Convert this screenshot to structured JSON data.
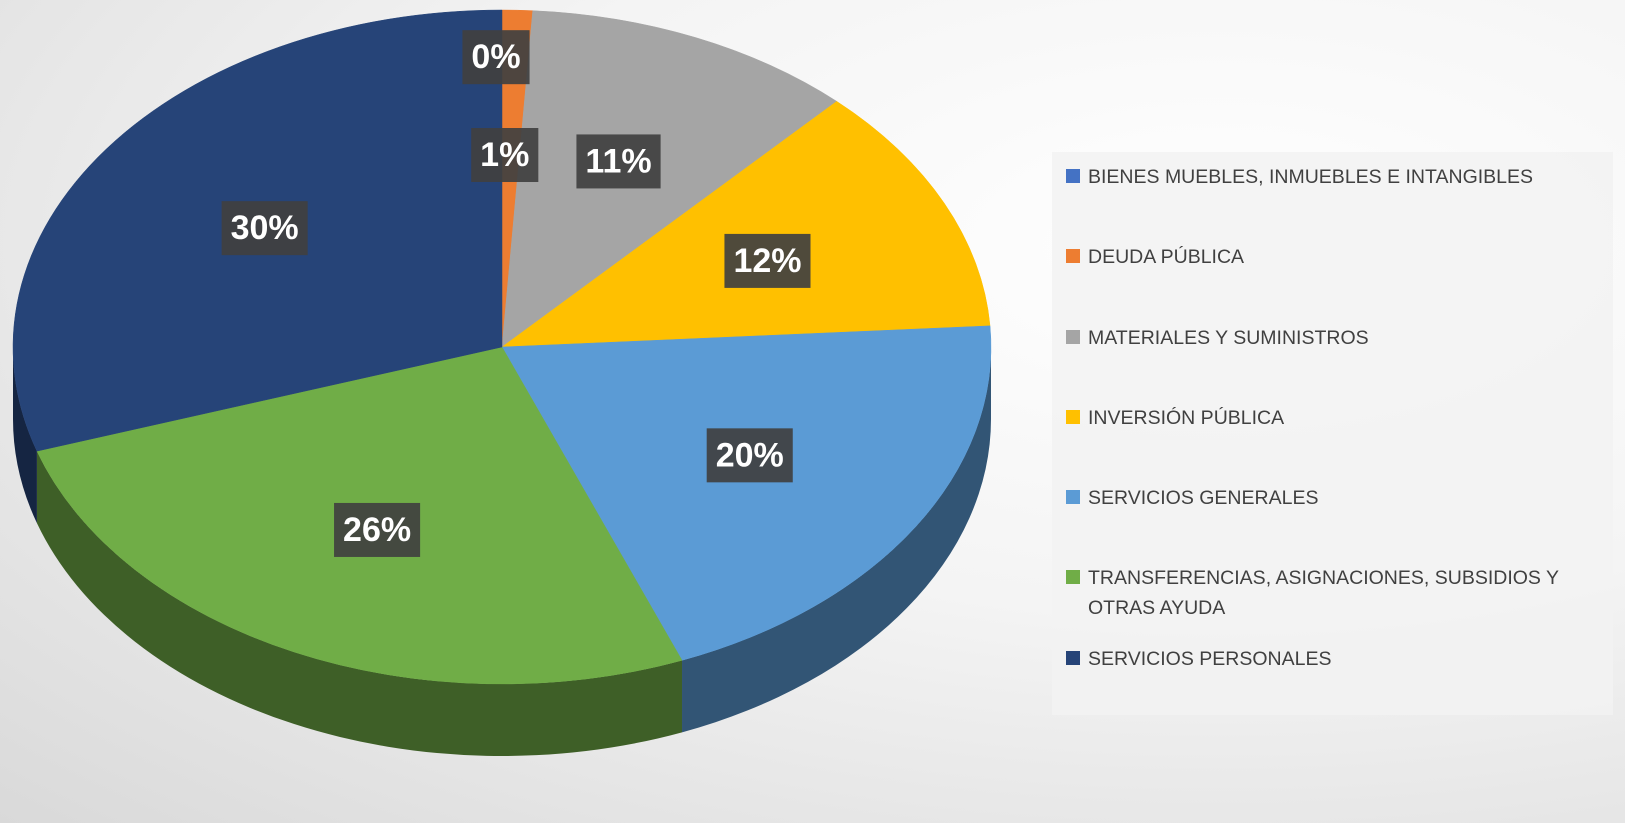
{
  "chart_data": {
    "type": "pie",
    "pie_3d": true,
    "categories": [
      "BIENES MUEBLES, INMUEBLES E INTANGIBLES",
      "DEUDA PÚBLICA",
      "MATERIALES Y SUMINISTROS",
      "INVERSIÓN PÚBLICA",
      "SERVICIOS GENERALES",
      "TRANSFERENCIAS, ASIGNACIONES, SUBSIDIOS Y OTRAS AYUDA",
      "SERVICIOS PERSONALES"
    ],
    "values": [
      0,
      1,
      11,
      12,
      20,
      26,
      30
    ],
    "value_labels": [
      "0%",
      "1%",
      "11%",
      "12%",
      "20%",
      "26%",
      "30%"
    ],
    "colors": [
      "#4472c4",
      "#ed7d31",
      "#a5a5a5",
      "#ffc000",
      "#5b9bd5",
      "#70ad47",
      "#264478"
    ],
    "legend": "right"
  }
}
